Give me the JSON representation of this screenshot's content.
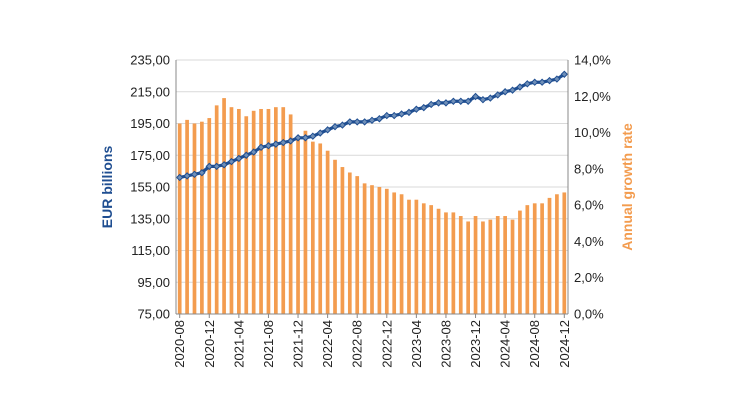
{
  "chart_data": {
    "type": "bar-line-combo",
    "colors": {
      "bars": "#f39c4f",
      "line": "#1f4e91",
      "marker": "#6f8fb8",
      "grid": "#d9d9d9",
      "axis": "#888888"
    },
    "y_left": {
      "label": "EUR billions",
      "ylim": [
        75,
        235
      ],
      "ticks": [
        "75,00",
        "95,00",
        "115,00",
        "135,00",
        "155,00",
        "175,00",
        "195,00",
        "215,00",
        "235,00"
      ]
    },
    "y_right": {
      "label": "Annual growth rate",
      "ylim": [
        0,
        14
      ],
      "ticks": [
        "0,0%",
        "2,0%",
        "4,0%",
        "6,0%",
        "8,0%",
        "10,0%",
        "12,0%",
        "14,0%"
      ]
    },
    "x": [
      "2020-08",
      "2020-09",
      "2020-10",
      "2020-11",
      "2020-12",
      "2021-01",
      "2021-02",
      "2021-03",
      "2021-04",
      "2021-05",
      "2021-06",
      "2021-07",
      "2021-08",
      "2021-09",
      "2021-10",
      "2021-11",
      "2021-12",
      "2022-01",
      "2022-02",
      "2022-03",
      "2022-04",
      "2022-05",
      "2022-06",
      "2022-07",
      "2022-08",
      "2022-09",
      "2022-10",
      "2022-11",
      "2022-12",
      "2023-01",
      "2023-02",
      "2023-03",
      "2023-04",
      "2023-05",
      "2023-06",
      "2023-07",
      "2023-08",
      "2023-09",
      "2023-10",
      "2023-11",
      "2023-12",
      "2024-01",
      "2024-02",
      "2024-03",
      "2024-04",
      "2024-05",
      "2024-06",
      "2024-07",
      "2024-08",
      "2024-09",
      "2024-10",
      "2024-11",
      "2024-12"
    ],
    "x_tick_labels": [
      "2020-08",
      "2020-12",
      "2021-04",
      "2021-08",
      "2021-12",
      "2022-04",
      "2022-08",
      "2022-12",
      "2023-04",
      "2023-08",
      "2023-12",
      "2024-04",
      "2024-08",
      "2024-12"
    ],
    "series": [
      {
        "name": "EUR billions",
        "type": "line",
        "axis": "left",
        "values": [
          161,
          162,
          163,
          164,
          168,
          168,
          169,
          171,
          173,
          175,
          177,
          180,
          181,
          182,
          183,
          184,
          186,
          186,
          187,
          189,
          191,
          193,
          194,
          196,
          196,
          196,
          197,
          198,
          200,
          200,
          201,
          202,
          204,
          205,
          207,
          208,
          208,
          209,
          209,
          209,
          212,
          210,
          211,
          213,
          215,
          216,
          218,
          220,
          221,
          221,
          222,
          223,
          226
        ]
      },
      {
        "name": "Annual growth rate",
        "type": "bar",
        "axis": "right",
        "values": [
          10.5,
          10.7,
          10.5,
          10.6,
          10.8,
          11.5,
          11.9,
          11.4,
          11.3,
          10.9,
          11.2,
          11.3,
          11.3,
          11.4,
          11.4,
          11.0,
          9.8,
          10.1,
          9.5,
          9.4,
          9.0,
          8.5,
          8.1,
          7.8,
          7.6,
          7.2,
          7.1,
          7.0,
          6.9,
          6.7,
          6.6,
          6.3,
          6.3,
          6.1,
          6.0,
          5.8,
          5.6,
          5.6,
          5.4,
          5.1,
          5.4,
          5.1,
          5.2,
          5.4,
          5.4,
          5.2,
          5.7,
          6.0,
          6.1,
          6.1,
          6.4,
          6.6,
          6.7
        ]
      }
    ]
  }
}
